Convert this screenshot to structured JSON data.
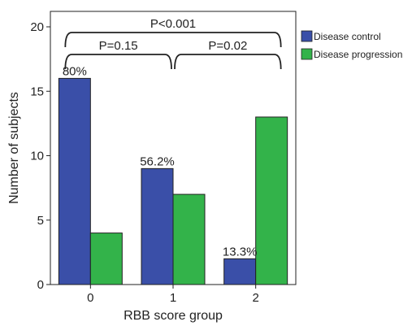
{
  "chart_data": {
    "type": "bar",
    "categories": [
      "0",
      "1",
      "2"
    ],
    "series": [
      {
        "name": "Disease control",
        "values": [
          16,
          9,
          2
        ],
        "color": "#3a4fa8"
      },
      {
        "name": "Disease progression",
        "values": [
          4,
          7,
          13
        ],
        "color": "#33b34a"
      }
    ],
    "xlabel": "RBB score group",
    "ylabel": "Number of subjects",
    "ylim": [
      0,
      20
    ],
    "yticks": [
      0,
      5,
      10,
      15,
      20
    ],
    "grid": false,
    "legend_position": "top-right, outside plot",
    "bar_labels": [
      {
        "category": "0",
        "series": "Disease control",
        "text": "80%"
      },
      {
        "category": "1",
        "series": "Disease control",
        "text": "56.2%"
      },
      {
        "category": "2",
        "series": "Disease control",
        "text": "13.3%"
      }
    ],
    "brackets": [
      {
        "from": "0",
        "to": "2",
        "text": "P<0.001",
        "level": 2
      },
      {
        "from": "0",
        "to": "1",
        "text": "P=0.15",
        "level": 1
      },
      {
        "from": "1",
        "to": "2",
        "text": "P=0.02",
        "level": 1
      }
    ]
  }
}
